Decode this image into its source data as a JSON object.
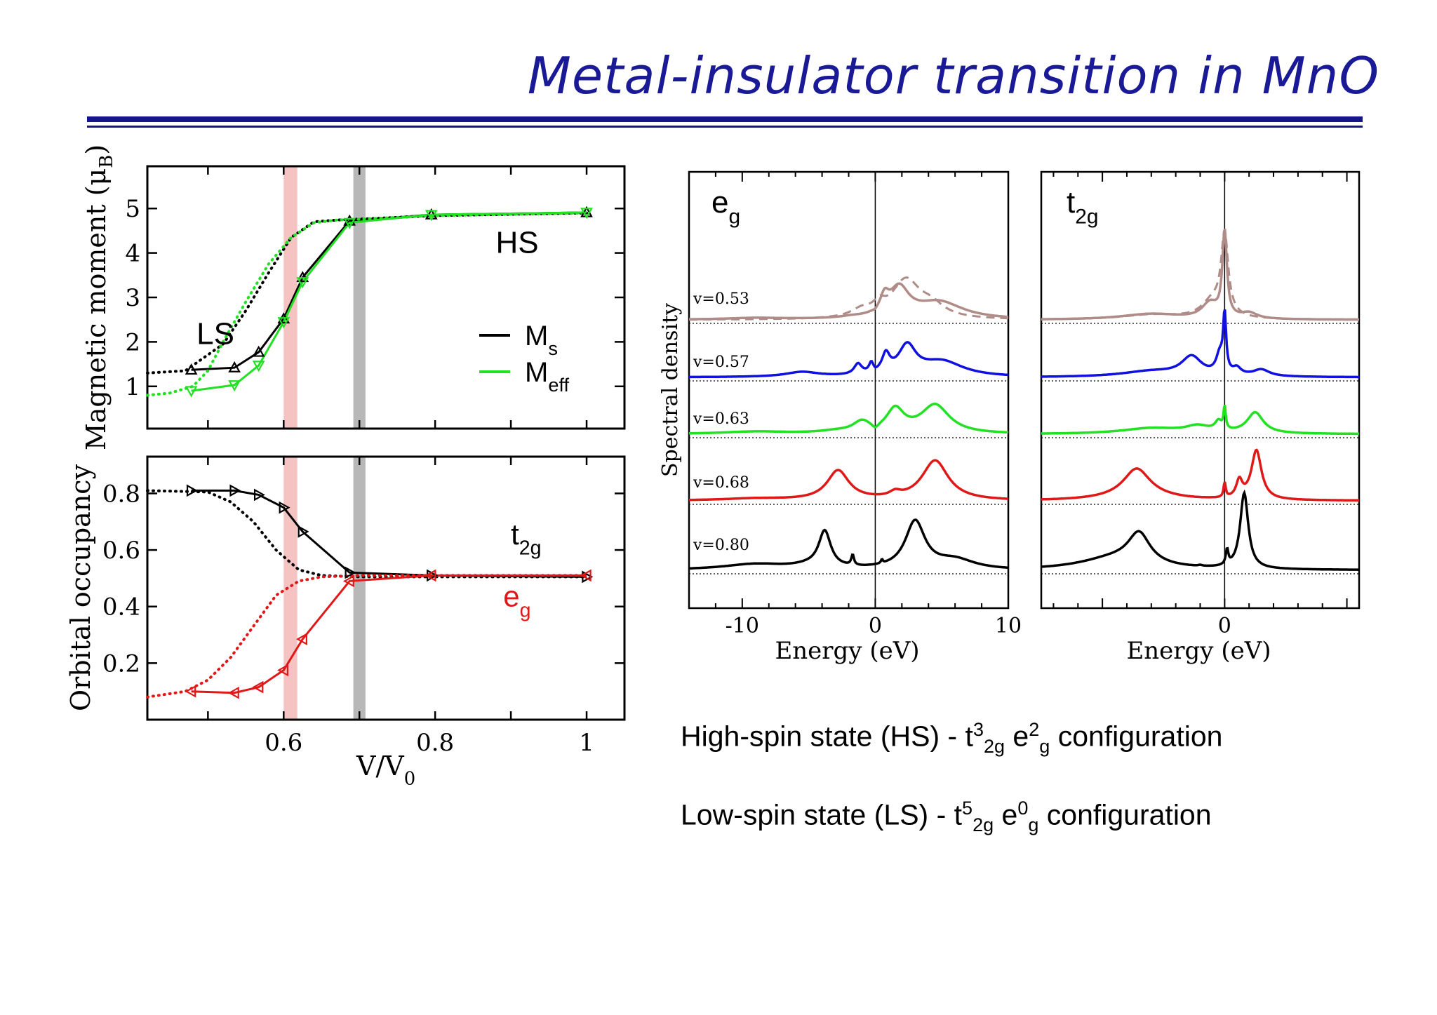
{
  "title": "Metal-insulator transition in MnO",
  "colors": {
    "title": "#1a1a96",
    "rule": "#14148c",
    "black": "#000000",
    "green": "#22e022",
    "red": "#e01818",
    "blue": "#1010e0",
    "rose": "#b08c88",
    "band_red": "#f4b4b4",
    "band_grey": "#a6a6a6"
  },
  "captions": [
    {
      "pre": "High-spin state (HS) -  t",
      "a_sup": "3",
      "a_sub": "2g",
      "mid": " e",
      "b_sup": "2",
      "b_sub": "g",
      "post": " configuration"
    },
    {
      "pre": "Low-spin state (LS) -  t",
      "a_sup": "5",
      "a_sub": "2g",
      "mid": " e",
      "b_sup": "0",
      "b_sub": "g",
      "post": " configuration"
    }
  ],
  "chart_data": [
    {
      "type": "line",
      "xlim": [
        0.42,
        1.05
      ],
      "ylim": [
        0.05,
        5.95
      ],
      "yticks": [
        1,
        2,
        3,
        4,
        5
      ],
      "ylabel_main": "Magnetic moment (",
      "ylabel_sym": "μ",
      "ylabel_sub": "B",
      "ylabel_end": ")",
      "bands": [
        {
          "x0": 0.6,
          "x1": 0.618,
          "color": "band_red"
        },
        {
          "x0": 0.692,
          "x1": 0.708,
          "color": "band_grey"
        }
      ],
      "annotations": [
        {
          "text": "LS",
          "x": 0.485,
          "y": 1.95
        },
        {
          "text": "HS",
          "x": 0.88,
          "y": 4.0
        }
      ],
      "legend": [
        {
          "main": "M",
          "sub": "s",
          "series": "M_s"
        },
        {
          "main": "M",
          "sub": "eff",
          "series": "M_eff"
        }
      ],
      "series": [
        {
          "name": "M_s",
          "color": "black",
          "marker": "up",
          "x": [
            0.478,
            0.535,
            0.567,
            0.6,
            0.625,
            0.687,
            0.795,
            1.0
          ],
          "y": [
            1.37,
            1.42,
            1.77,
            2.52,
            3.45,
            4.72,
            4.86,
            4.91
          ],
          "dotted": {
            "x": [
              0.42,
              0.47,
              0.52,
              0.55,
              0.58,
              0.61,
              0.64,
              0.67,
              0.7,
              0.8,
              1.0
            ],
            "y": [
              1.3,
              1.35,
              1.95,
              2.7,
              3.55,
              4.35,
              4.7,
              4.74,
              4.76,
              4.84,
              4.9
            ]
          }
        },
        {
          "name": "M_eff",
          "color": "green",
          "marker": "down",
          "x": [
            0.478,
            0.535,
            0.567,
            0.6,
            0.625,
            0.687,
            0.795,
            1.0
          ],
          "y": [
            0.9,
            1.03,
            1.47,
            2.45,
            3.35,
            4.68,
            4.86,
            4.91
          ],
          "dotted": {
            "x": [
              0.42,
              0.45,
              0.48,
              0.5,
              0.52,
              0.55,
              0.58,
              0.61,
              0.64,
              0.67,
              0.7,
              0.8,
              1.0
            ],
            "y": [
              0.8,
              0.85,
              1.0,
              1.35,
              2.0,
              2.9,
              3.75,
              4.35,
              4.68,
              4.74,
              4.76,
              4.84,
              4.9
            ]
          }
        }
      ]
    },
    {
      "type": "line",
      "xlim": [
        0.42,
        1.05
      ],
      "ylim": [
        0.0,
        0.93
      ],
      "xticks": [
        0.6,
        0.8,
        1
      ],
      "xtick_labels": [
        "0.6",
        "0.8",
        "1"
      ],
      "yticks": [
        0.2,
        0.4,
        0.6,
        0.8
      ],
      "ytick_labels": [
        "0.2",
        "0.4",
        "0.6",
        "0.8"
      ],
      "xlabel_main": "V/V",
      "xlabel_sub": "0",
      "ylabel": "Orbital occupancy",
      "bands": [
        {
          "x0": 0.6,
          "x1": 0.618,
          "color": "band_red"
        },
        {
          "x0": 0.692,
          "x1": 0.708,
          "color": "band_grey"
        }
      ],
      "labels": [
        {
          "main": "t",
          "sub": "2g",
          "color": "black",
          "x": 0.9,
          "y": 0.62
        },
        {
          "main": "e",
          "sub": "g",
          "color": "red",
          "x": 0.89,
          "y": 0.4
        }
      ],
      "series": [
        {
          "name": "t2g",
          "color": "black",
          "marker": "right",
          "x": [
            0.478,
            0.535,
            0.567,
            0.6,
            0.625,
            0.687,
            0.795,
            1.0
          ],
          "y": [
            0.81,
            0.81,
            0.795,
            0.75,
            0.665,
            0.52,
            0.51,
            0.505
          ],
          "dotted": {
            "x": [
              0.42,
              0.5,
              0.53,
              0.56,
              0.59,
              0.62,
              0.65,
              0.7,
              0.8,
              1.0
            ],
            "y": [
              0.81,
              0.805,
              0.77,
              0.7,
              0.6,
              0.53,
              0.51,
              0.505,
              0.505,
              0.505
            ]
          }
        },
        {
          "name": "eg",
          "color": "red",
          "marker": "left",
          "x": [
            0.478,
            0.535,
            0.567,
            0.6,
            0.625,
            0.687,
            0.795,
            1.0
          ],
          "y": [
            0.1,
            0.095,
            0.115,
            0.175,
            0.285,
            0.49,
            0.51,
            0.51
          ],
          "dotted": {
            "x": [
              0.42,
              0.47,
              0.5,
              0.53,
              0.56,
              0.59,
              0.62,
              0.65,
              0.7,
              0.8,
              1.0
            ],
            "y": [
              0.08,
              0.1,
              0.14,
              0.22,
              0.33,
              0.44,
              0.49,
              0.505,
              0.51,
              0.51,
              0.51
            ]
          }
        }
      ]
    },
    {
      "type": "line",
      "title_main": "e",
      "title_sub": "g",
      "xlim": [
        -14,
        10
      ],
      "xticks": [
        -10,
        0,
        10
      ],
      "xtick_labels": [
        "-10",
        "0",
        "10"
      ],
      "xlabel": "Energy (eV)",
      "ylabel": "Spectral density",
      "series": [
        {
          "name": "v=0.53",
          "color": "rose",
          "peaks": [
            [
              -9,
              0.08,
              2.5
            ],
            [
              -1.8,
              0.06,
              1
            ],
            [
              0,
              -0.08,
              0.2
            ],
            [
              0.7,
              0.85,
              0.4
            ],
            [
              1.8,
              1.5,
              0.9
            ],
            [
              4.8,
              0.9,
              2.2
            ]
          ],
          "dashed_peaks": [
            [
              -1,
              0.4,
              1
            ],
            [
              0.3,
              0.5,
              0.5
            ],
            [
              2.3,
              2.0,
              1.3
            ],
            [
              4.2,
              0.6,
              1.2
            ]
          ]
        },
        {
          "name": "v=0.57",
          "color": "blue",
          "peaks": [
            [
              -5.5,
              0.25,
              1.5
            ],
            [
              -1.3,
              0.55,
              0.35
            ],
            [
              -0.3,
              0.5,
              0.2
            ],
            [
              0,
              -0.08,
              0.2
            ],
            [
              0.8,
              0.95,
              0.35
            ],
            [
              2.4,
              1.5,
              0.8
            ],
            [
              5,
              0.8,
              2
            ]
          ]
        },
        {
          "name": "v=0.63",
          "color": "green",
          "peaks": [
            [
              -9,
              0.12,
              3
            ],
            [
              -3,
              0.1,
              1.5
            ],
            [
              -1.0,
              0.55,
              0.8
            ],
            [
              0,
              -0.25,
              0.3
            ],
            [
              1.5,
              1.2,
              0.8
            ],
            [
              4.5,
              1.5,
              1.3
            ]
          ]
        },
        {
          "name": "v=0.68",
          "color": "red",
          "peaks": [
            [
              -9,
              0.1,
              3
            ],
            [
              -2.8,
              1.55,
              1.0
            ],
            [
              1.5,
              0.25,
              0.5
            ],
            [
              4.5,
              2.1,
              1.2
            ]
          ]
        },
        {
          "name": "v=0.80",
          "color": "black",
          "peaks": [
            [
              -9,
              0.3,
              3
            ],
            [
              -5,
              0.15,
              1.5
            ],
            [
              -3.8,
              1.9,
              0.55
            ],
            [
              -1.7,
              0.55,
              0.12
            ],
            [
              0.5,
              0.2,
              0.08
            ],
            [
              3.0,
              2.5,
              0.9
            ],
            [
              6,
              0.5,
              1.8
            ]
          ]
        }
      ]
    },
    {
      "type": "line",
      "title_main": "t",
      "title_sub": "2g",
      "xlim": [
        -15,
        11
      ],
      "xticks": [
        0
      ],
      "xtick_labels": [
        "0"
      ],
      "xlabel": "Energy (eV)",
      "series": [
        {
          "name": "v=0.53",
          "color": "rose",
          "peaks": [
            [
              -6,
              0.3,
              3
            ],
            [
              -1.2,
              0.8,
              0.8
            ],
            [
              0,
              4.5,
              0.22
            ],
            [
              2,
              0.3,
              0.8
            ]
          ],
          "dashed_peaks": [
            [
              -6,
              0.25,
              3
            ],
            [
              -1,
              0.9,
              1.1
            ],
            [
              0,
              4.2,
              0.35
            ]
          ]
        },
        {
          "name": "v=0.57",
          "color": "blue",
          "peaks": [
            [
              -6,
              0.3,
              3
            ],
            [
              -2.7,
              1.0,
              1.0
            ],
            [
              -0.4,
              1.0,
              0.35
            ],
            [
              0,
              3.0,
              0.14
            ],
            [
              1.0,
              0.35,
              0.4
            ],
            [
              3.0,
              0.35,
              0.8
            ]
          ]
        },
        {
          "name": "v=0.63",
          "color": "green",
          "peaks": [
            [
              -6,
              0.3,
              3
            ],
            [
              -2.2,
              0.35,
              1.2
            ],
            [
              -0.5,
              0.5,
              0.35
            ],
            [
              0,
              1.2,
              0.1
            ],
            [
              2.5,
              1.1,
              0.8
            ]
          ]
        },
        {
          "name": "v=0.68",
          "color": "red",
          "peaks": [
            [
              -7,
              0.3,
              3
            ],
            [
              -7.2,
              1.4,
              1.3
            ],
            [
              0,
              0.8,
              0.1
            ],
            [
              1.2,
              0.9,
              0.3
            ],
            [
              2.6,
              2.6,
              0.5
            ]
          ]
        },
        {
          "name": "v=0.80",
          "color": "black",
          "peaks": [
            [
              -9,
              0.6,
              3.5
            ],
            [
              -7,
              1.6,
              1.1
            ],
            [
              -2,
              0.05,
              0.2
            ],
            [
              0.2,
              0.8,
              0.12
            ],
            [
              1.6,
              4.0,
              0.4
            ]
          ]
        }
      ]
    }
  ]
}
